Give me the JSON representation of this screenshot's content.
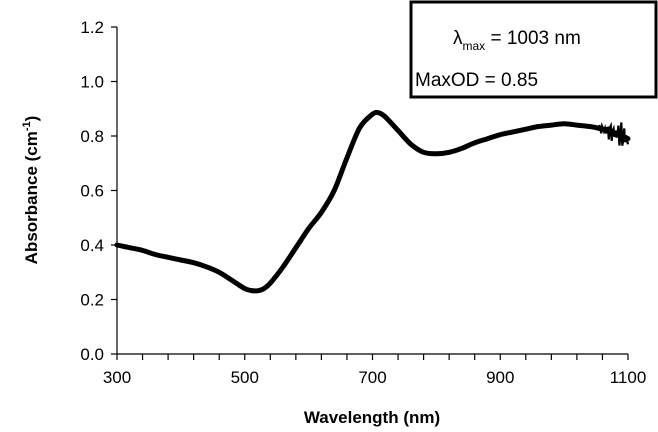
{
  "chart_data": {
    "type": "line",
    "xlabel": "Wavelength (nm)",
    "ylabel": {
      "main": "Absorbance (cm",
      "sup": "-1",
      "end": ")"
    },
    "xlim": [
      300,
      1100
    ],
    "ylim": [
      0,
      1.2
    ],
    "xticks": [
      300,
      500,
      700,
      900,
      1100
    ],
    "xticklabels": [
      "300",
      "500",
      "700",
      "900",
      "1100"
    ],
    "yticks": [
      0,
      0.2,
      0.4,
      0.6,
      0.8,
      1.0,
      1.2
    ],
    "yticklabels": [
      "0.0",
      "0.2",
      "0.4",
      "0.6",
      "0.8",
      "1.0",
      "1.2"
    ],
    "x_minor_step": 40,
    "grid": false,
    "line_color": "#000000",
    "series": [
      {
        "x": [
          300,
          320,
          340,
          360,
          380,
          400,
          420,
          440,
          460,
          480,
          500,
          510,
          520,
          530,
          540,
          560,
          580,
          600,
          620,
          640,
          660,
          680,
          700,
          710,
          720,
          740,
          760,
          780,
          800,
          820,
          840,
          860,
          880,
          900,
          920,
          940,
          960,
          980,
          1000,
          1020,
          1040,
          1060,
          1080,
          1100
        ],
        "y": [
          0.4,
          0.39,
          0.38,
          0.365,
          0.355,
          0.345,
          0.335,
          0.32,
          0.3,
          0.27,
          0.24,
          0.233,
          0.232,
          0.24,
          0.26,
          0.32,
          0.39,
          0.46,
          0.52,
          0.6,
          0.72,
          0.83,
          0.88,
          0.885,
          0.87,
          0.82,
          0.77,
          0.74,
          0.735,
          0.74,
          0.755,
          0.775,
          0.79,
          0.805,
          0.815,
          0.825,
          0.835,
          0.84,
          0.845,
          0.84,
          0.835,
          0.825,
          0.81,
          0.79
        ]
      }
    ],
    "annotation": {
      "line1": {
        "symbol": "λ",
        "sub": "max",
        "text": " = 1003 nm"
      },
      "line2": "MaxOD = 0.85"
    }
  }
}
